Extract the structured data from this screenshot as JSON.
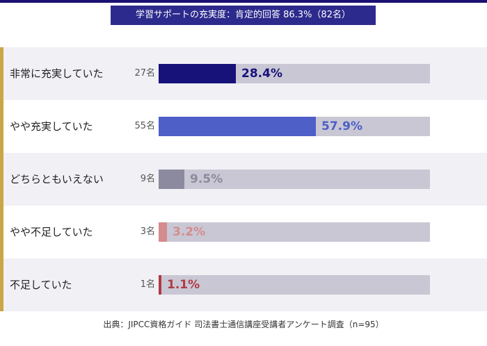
{
  "title": "学習サポートの充実度：肯定的回答 86.3%（82名）",
  "footer": "出典：JIPCC資格ガイド 司法書士通信講座受講者アンケート調査（n=95）",
  "chart_data": {
    "type": "bar",
    "orientation": "horizontal",
    "title": "学習サポートの充実度：肯定的回答 86.3%（82名）",
    "xlim": [
      0,
      100
    ],
    "categories": [
      "非常に充実していた",
      "やや充実していた",
      "どちらともいえない",
      "やや不足していた",
      "不足していた"
    ],
    "counts": [
      "27名",
      "55名",
      "9名",
      "3名",
      "1名"
    ],
    "values": [
      28.4,
      57.9,
      9.5,
      3.2,
      1.1
    ],
    "value_labels": [
      "28.4%",
      "57.9%",
      "9.5%",
      "3.2%",
      "1.1%"
    ],
    "colors": [
      "#17117a",
      "#4e5fc8",
      "#8c8a9e",
      "#d58c8c",
      "#b03a45"
    ],
    "track_color": "#c9c7d4",
    "grid": false,
    "legend": "none"
  }
}
